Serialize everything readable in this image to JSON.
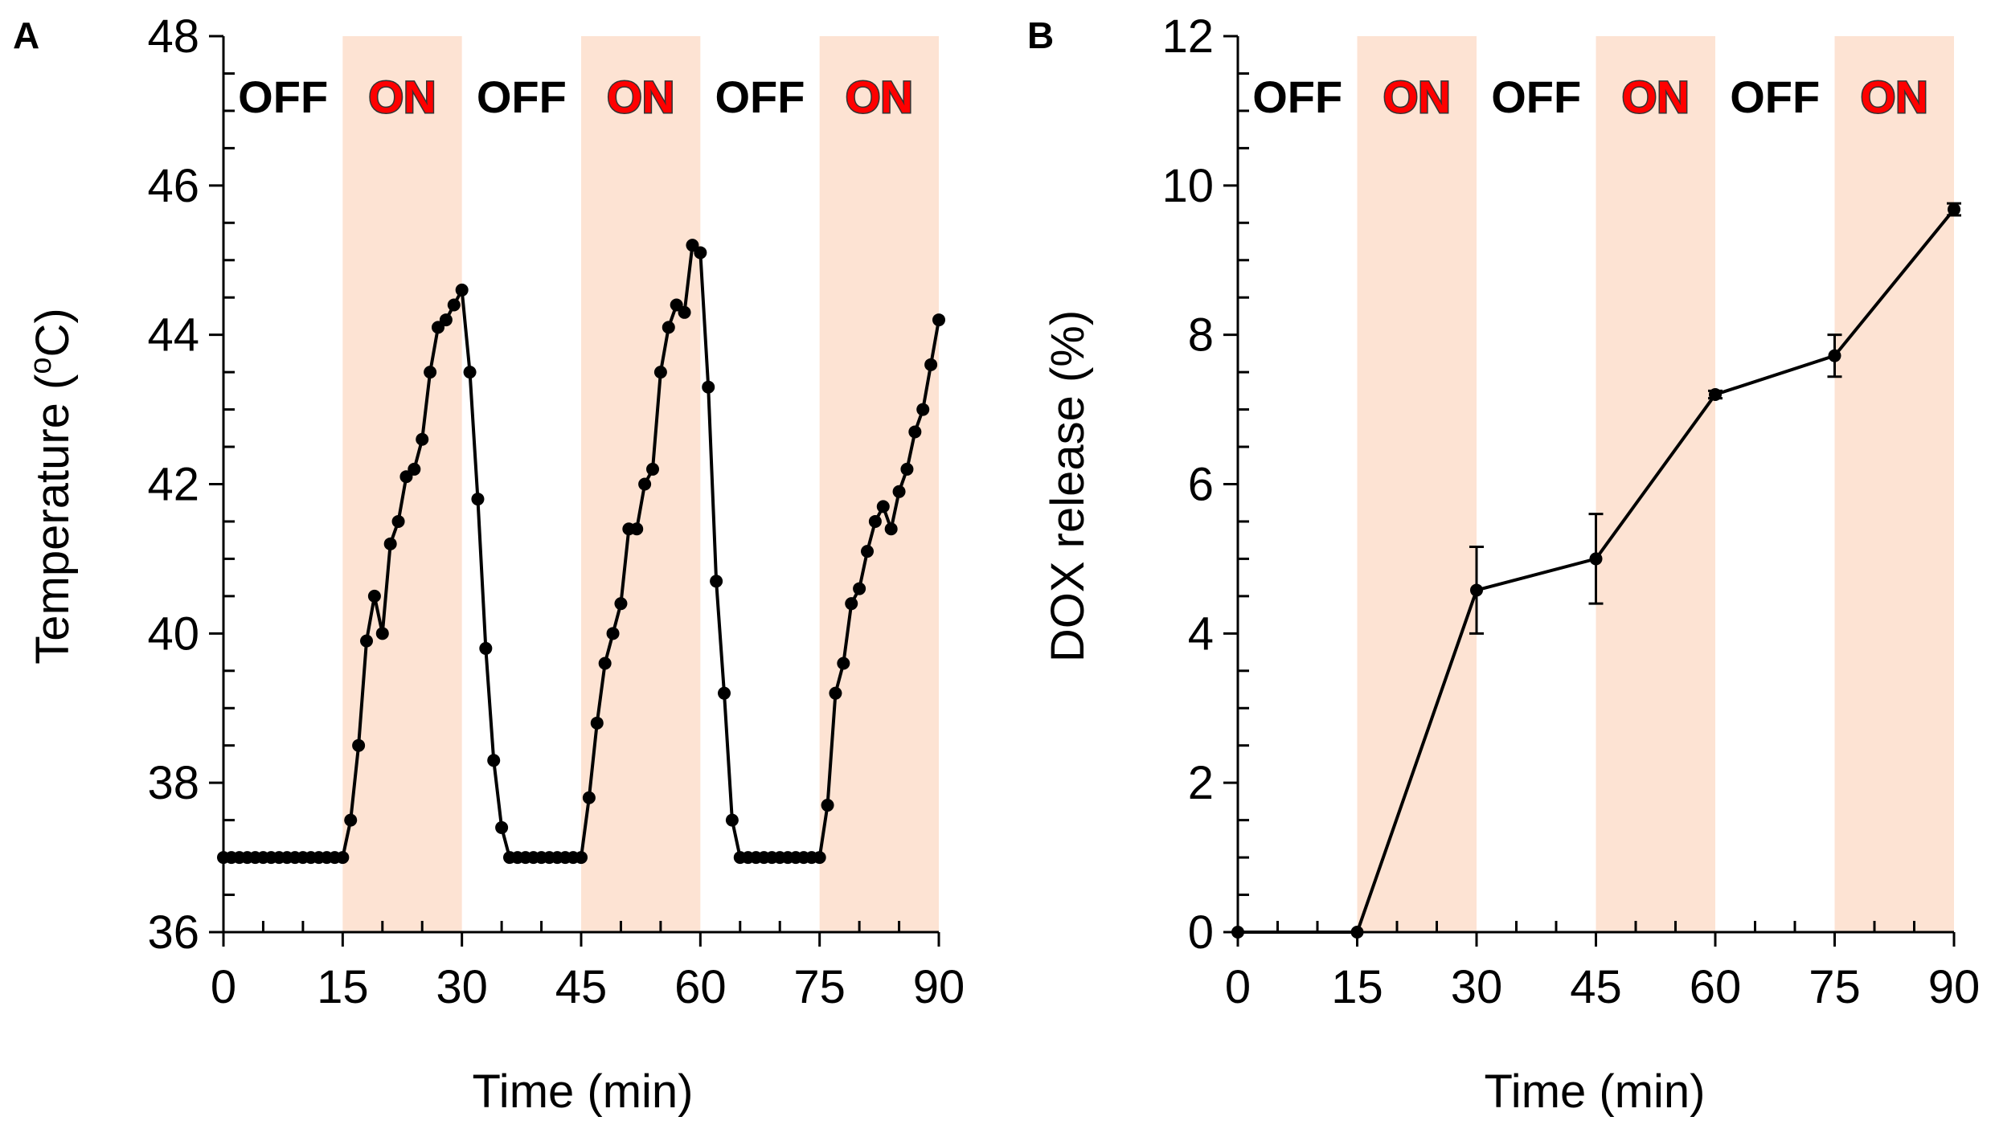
{
  "chart_data": [
    {
      "type": "scatter",
      "panel_label": "A",
      "title": "",
      "xlabel": "Time (min)",
      "ylabel": "Temperature (",
      "ylabel_super": "o",
      "ylabel_suffix": "C)",
      "xlim": [
        0,
        90
      ],
      "ylim": [
        36,
        48
      ],
      "x_ticks": [
        0,
        15,
        30,
        45,
        60,
        75,
        90
      ],
      "y_ticks": [
        36,
        38,
        40,
        42,
        44,
        46,
        48
      ],
      "grid": false,
      "shaded_intervals": [
        [
          15,
          30
        ],
        [
          45,
          60
        ],
        [
          75,
          90
        ]
      ],
      "state_labels": [
        {
          "text": "OFF",
          "x": 7.5,
          "state": "off"
        },
        {
          "text": "ON",
          "x": 22.5,
          "state": "on"
        },
        {
          "text": "OFF",
          "x": 37.5,
          "state": "off"
        },
        {
          "text": "ON",
          "x": 52.5,
          "state": "on"
        },
        {
          "text": "OFF",
          "x": 67.5,
          "state": "off"
        },
        {
          "text": "ON",
          "x": 82.5,
          "state": "on"
        }
      ],
      "series": [
        {
          "name": "Temperature",
          "x": [
            0,
            1,
            2,
            3,
            4,
            5,
            6,
            7,
            8,
            9,
            10,
            11,
            12,
            13,
            14,
            15,
            16,
            17,
            18,
            19,
            20,
            21,
            22,
            23,
            24,
            25,
            26,
            27,
            28,
            29,
            30,
            31,
            32,
            33,
            34,
            35,
            36,
            37,
            38,
            39,
            40,
            41,
            42,
            43,
            44,
            45,
            46,
            47,
            48,
            49,
            50,
            51,
            52,
            53,
            54,
            55,
            56,
            57,
            58,
            59,
            60,
            61,
            62,
            63,
            64,
            65,
            66,
            67,
            68,
            69,
            70,
            71,
            72,
            73,
            74,
            75,
            76,
            77,
            78,
            79,
            80,
            81,
            82,
            83,
            84,
            85,
            86,
            87,
            88,
            89,
            90
          ],
          "y": [
            37,
            37,
            37,
            37,
            37,
            37,
            37,
            37,
            37,
            37,
            37,
            37,
            37,
            37,
            37,
            37,
            37.5,
            38.5,
            39.9,
            40.5,
            40,
            41.2,
            41.5,
            42.1,
            42.2,
            42.6,
            43.5,
            44.1,
            44.2,
            44.4,
            44.6,
            43.5,
            41.8,
            39.8,
            38.3,
            37.4,
            37,
            37,
            37,
            37,
            37,
            37,
            37,
            37,
            37,
            37,
            37.8,
            38.8,
            39.6,
            40,
            40.4,
            41.4,
            41.4,
            42,
            42.2,
            43.5,
            44.1,
            44.4,
            44.3,
            45.2,
            45.1,
            43.3,
            40.7,
            39.2,
            37.5,
            37,
            37,
            37,
            37,
            37,
            37,
            37,
            37,
            37,
            37,
            37,
            37.7,
            39.2,
            39.6,
            40.4,
            40.6,
            41.1,
            41.5,
            41.7,
            41.4,
            41.9,
            42.2,
            42.7,
            43,
            43.6,
            44.2
          ]
        }
      ],
      "colors": {
        "line": "#000000",
        "marker": "#000000",
        "shade": "#fde3d3",
        "on_text": "#ff0000"
      }
    },
    {
      "type": "line",
      "panel_label": "B",
      "title": "",
      "xlabel": "Time (min)",
      "ylabel": "DOX release (%)",
      "xlim": [
        0,
        90
      ],
      "ylim": [
        0,
        12
      ],
      "x_ticks": [
        0,
        15,
        30,
        45,
        60,
        75,
        90
      ],
      "y_ticks": [
        0,
        2,
        4,
        6,
        8,
        10,
        12
      ],
      "grid": false,
      "shaded_intervals": [
        [
          15,
          30
        ],
        [
          45,
          60
        ],
        [
          75,
          90
        ]
      ],
      "state_labels": [
        {
          "text": "OFF",
          "x": 7.5,
          "state": "off"
        },
        {
          "text": "ON",
          "x": 22.5,
          "state": "on"
        },
        {
          "text": "OFF",
          "x": 37.5,
          "state": "off"
        },
        {
          "text": "ON",
          "x": 52.5,
          "state": "on"
        },
        {
          "text": "OFF",
          "x": 67.5,
          "state": "off"
        },
        {
          "text": "ON",
          "x": 82.5,
          "state": "on"
        }
      ],
      "series": [
        {
          "name": "DOX release",
          "x": [
            0,
            15,
            30,
            45,
            60,
            75,
            90
          ],
          "y": [
            0,
            0,
            4.58,
            5.0,
            7.2,
            7.72,
            9.68
          ],
          "error": [
            0,
            0,
            0.58,
            0.6,
            0.05,
            0.28,
            0.08
          ]
        }
      ],
      "colors": {
        "line": "#000000",
        "marker": "#000000",
        "shade": "#fde3d3",
        "on_text": "#ff0000"
      }
    }
  ]
}
